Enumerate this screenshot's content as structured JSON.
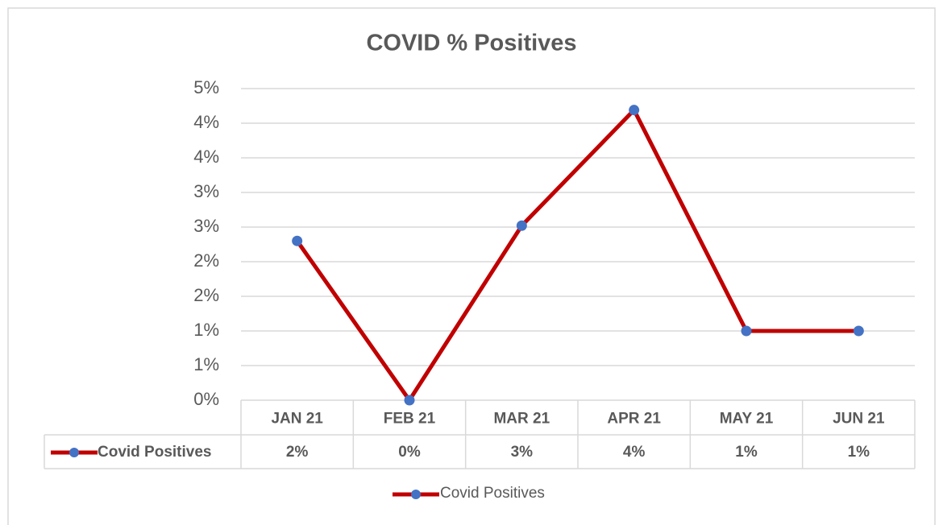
{
  "chart_data": {
    "type": "line",
    "title": "COVID % Positives",
    "categories": [
      "JAN 21",
      "FEB 21",
      "MAR 21",
      "APR 21",
      "MAY 21",
      "JUN 21"
    ],
    "series": [
      {
        "name": "Covid Positives",
        "color": "#c00000",
        "marker_color": "#4472c4",
        "values": [
          2.3,
          0,
          2.52,
          4.19,
          1,
          1
        ],
        "value_labels": [
          "2%",
          "0%",
          "3%",
          "4%",
          "1%",
          "1%"
        ]
      }
    ],
    "ylim": [
      0,
      4.5
    ],
    "yticks": [
      {
        "value": 0,
        "label": "0%"
      },
      {
        "value": 0.5,
        "label": "1%"
      },
      {
        "value": 1,
        "label": "1%"
      },
      {
        "value": 1.5,
        "label": "2%"
      },
      {
        "value": 2,
        "label": "2%"
      },
      {
        "value": 2.5,
        "label": "3%"
      },
      {
        "value": 3,
        "label": "3%"
      },
      {
        "value": 3.5,
        "label": "4%"
      },
      {
        "value": 4,
        "label": "4%"
      },
      {
        "value": 4.5,
        "label": "5%"
      }
    ],
    "grid": true,
    "data_table": true,
    "legend": "bottom"
  }
}
